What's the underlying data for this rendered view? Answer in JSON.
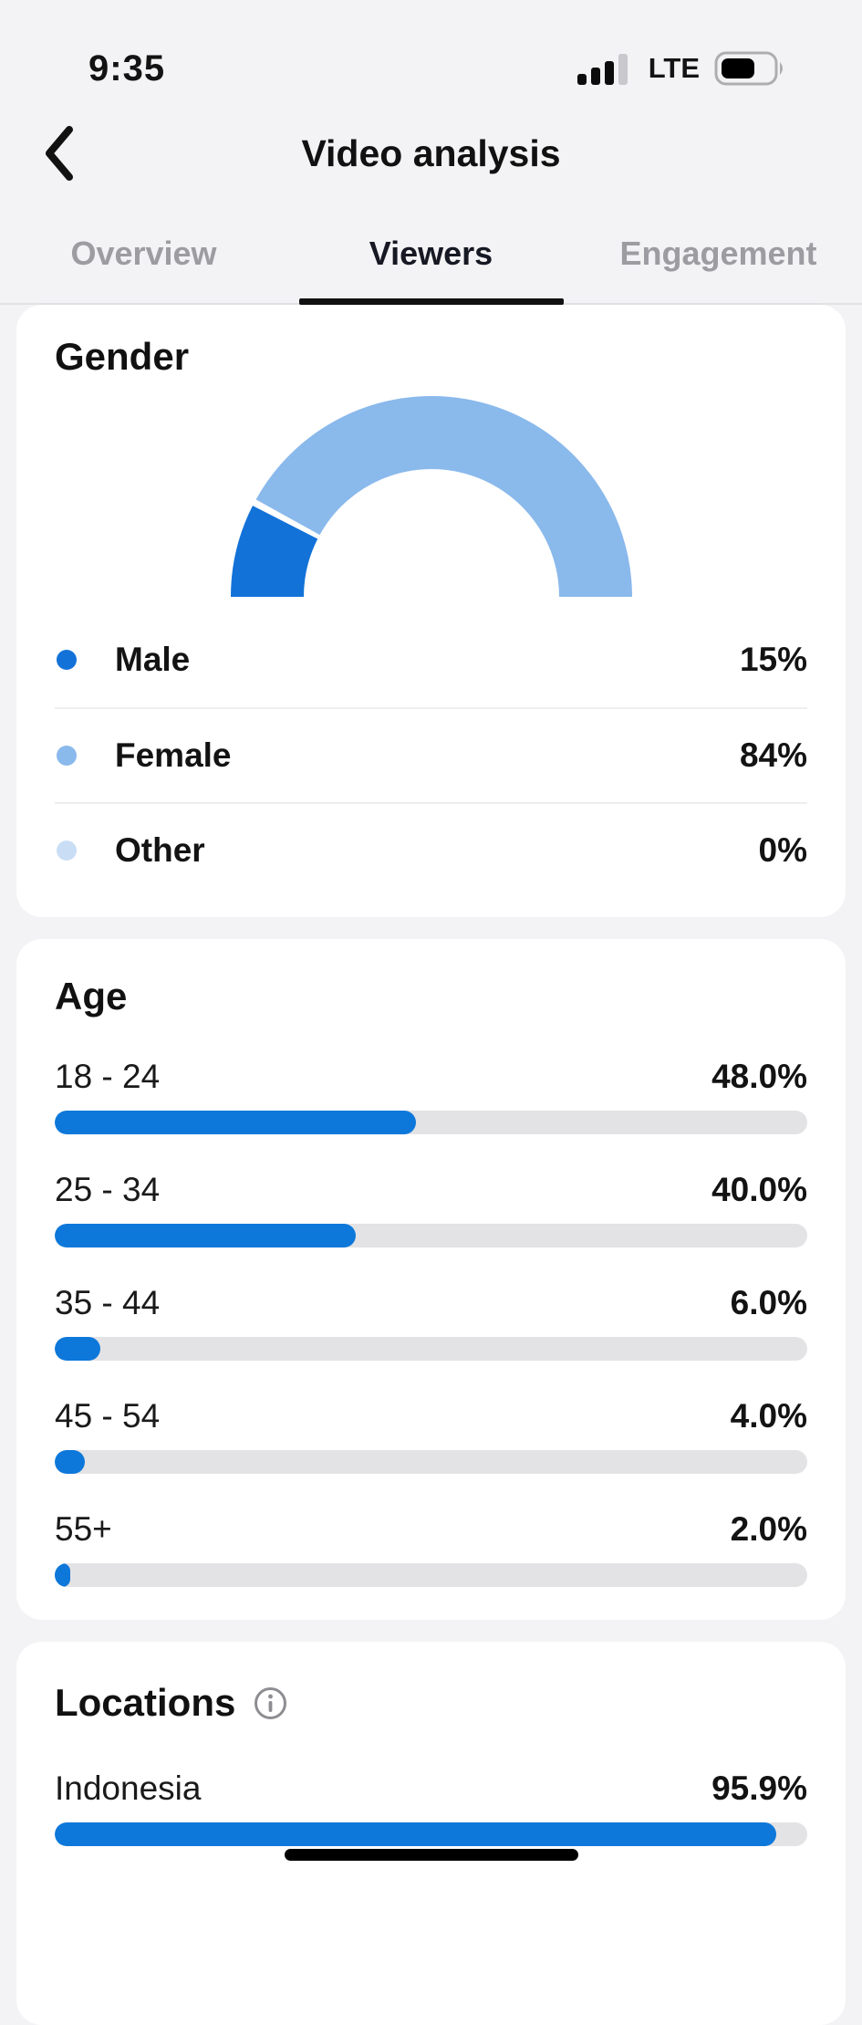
{
  "status_bar": {
    "time": "9:35",
    "network": "LTE",
    "signal": {
      "filled_bars": 3,
      "total_bars": 4
    },
    "battery_fill_ratio": 0.55
  },
  "header": {
    "title": "Video analysis"
  },
  "tabs": {
    "active_index": 1,
    "items": [
      {
        "label": "Overview"
      },
      {
        "label": "Viewers"
      },
      {
        "label": "Engagement"
      }
    ]
  },
  "colors": {
    "accent_blue": "#0d78da",
    "male_blue": "#1372d8",
    "female_blue": "#8ab9ec",
    "other_blue": "#c9def5",
    "track_gray": "#e3e3e5",
    "inactive_tab": "#9c9ca1",
    "underline_black": "#111111"
  },
  "gender_section": {
    "title": "Gender",
    "legend": [
      {
        "label": "Male",
        "value": "15%",
        "percent": 15,
        "color": "#1372d8"
      },
      {
        "label": "Female",
        "value": "84%",
        "percent": 84,
        "color": "#8ab9ec"
      },
      {
        "label": "Other",
        "value": "0%",
        "percent": 0,
        "color": "#c9def5"
      }
    ]
  },
  "age_section": {
    "title": "Age",
    "rows": [
      {
        "label": "18 - 24",
        "value": "48.0%",
        "percent": 48
      },
      {
        "label": "25 - 34",
        "value": "40.0%",
        "percent": 40
      },
      {
        "label": "35 - 44",
        "value": "6.0%",
        "percent": 6
      },
      {
        "label": "45 - 54",
        "value": "4.0%",
        "percent": 4
      },
      {
        "label": "55+",
        "value": "2.0%",
        "percent": 2
      }
    ]
  },
  "locations_section": {
    "title": "Locations",
    "rows": [
      {
        "label": "Indonesia",
        "value": "95.9%",
        "percent": 95.9
      }
    ]
  },
  "chart_data": [
    {
      "type": "pie",
      "variant": "half-donut-gauge",
      "title": "Gender",
      "categories": [
        "Male",
        "Female",
        "Other"
      ],
      "values": [
        15,
        84,
        0
      ],
      "unit": "%",
      "colors": [
        "#1372d8",
        "#8ab9ec",
        "#c9def5"
      ],
      "legend_position": "below"
    },
    {
      "type": "bar",
      "orientation": "horizontal",
      "title": "Age",
      "categories": [
        "18 - 24",
        "25 - 34",
        "35 - 44",
        "45 - 54",
        "55+"
      ],
      "values": [
        48.0,
        40.0,
        6.0,
        4.0,
        2.0
      ],
      "unit": "%",
      "xlim": [
        0,
        100
      ],
      "bar_color": "#0d78da",
      "track_color": "#e3e3e5"
    },
    {
      "type": "bar",
      "orientation": "horizontal",
      "title": "Locations",
      "categories": [
        "Indonesia"
      ],
      "values": [
        95.9
      ],
      "unit": "%",
      "xlim": [
        0,
        100
      ],
      "bar_color": "#0d78da",
      "track_color": "#e3e3e5"
    }
  ]
}
